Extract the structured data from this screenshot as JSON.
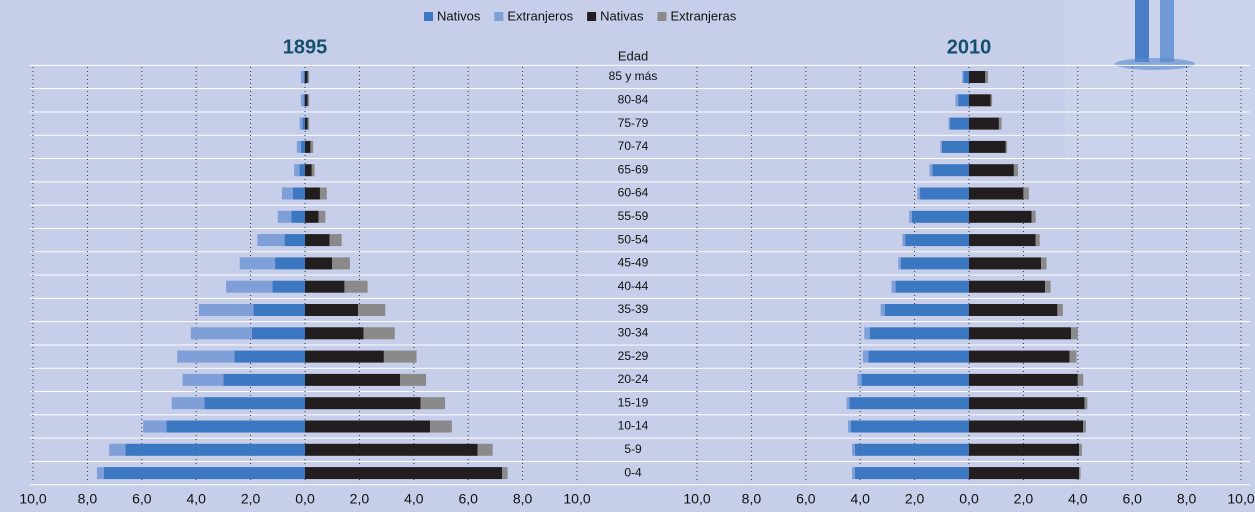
{
  "chart_data": {
    "type": "pyramid",
    "category_label": "Edad",
    "categories": [
      "85 y más",
      "80-84",
      "75-79",
      "70-74",
      "65-69",
      "60-64",
      "55-59",
      "50-54",
      "45-49",
      "40-44",
      "35-39",
      "30-34",
      "25-29",
      "20-24",
      "15-19",
      "10-14",
      "5-9",
      "0-4"
    ],
    "series": [
      {
        "name": "Nativos",
        "color": "#3b78c1",
        "side": "left"
      },
      {
        "name": "Extranjeros",
        "color": "#7f9fd9",
        "side": "left"
      },
      {
        "name": "Nativas",
        "color": "#221e1f",
        "side": "right"
      },
      {
        "name": "Extranjeras",
        "color": "#8a8a8a",
        "side": "right"
      }
    ],
    "xlim": [
      -10,
      10
    ],
    "xticks": [
      {
        "value": -10,
        "label": "10,0"
      },
      {
        "value": -8,
        "label": "8,0"
      },
      {
        "value": -6,
        "label": "6,0"
      },
      {
        "value": -4,
        "label": "4,0"
      },
      {
        "value": -2,
        "label": "2,0"
      },
      {
        "value": 0,
        "label": "0,0"
      },
      {
        "value": 2,
        "label": "2,0"
      },
      {
        "value": 4,
        "label": "4,0"
      },
      {
        "value": 6,
        "label": "6,0"
      },
      {
        "value": 8,
        "label": "8,0"
      },
      {
        "value": 10,
        "label": "10,0"
      }
    ],
    "panels": [
      {
        "title": "1895",
        "series": [
          {
            "values": [
              0.05,
              0.05,
              0.1,
              0.15,
              0.2,
              0.45,
              0.5,
              0.75,
              1.1,
              1.2,
              1.9,
              1.95,
              2.6,
              3.0,
              3.7,
              5.1,
              6.6,
              7.4
            ]
          },
          {
            "values": [
              0.1,
              0.1,
              0.1,
              0.15,
              0.2,
              0.4,
              0.5,
              1.0,
              1.3,
              1.7,
              2.0,
              2.25,
              2.1,
              1.5,
              1.2,
              0.85,
              0.6,
              0.25
            ]
          },
          {
            "values": [
              0.1,
              0.1,
              0.1,
              0.2,
              0.25,
              0.55,
              0.5,
              0.9,
              1.0,
              1.45,
              1.95,
              2.15,
              2.9,
              3.5,
              4.25,
              4.6,
              6.35,
              7.25
            ]
          },
          {
            "values": [
              0.05,
              0.05,
              0.05,
              0.1,
              0.1,
              0.25,
              0.25,
              0.45,
              0.65,
              0.85,
              1.0,
              1.15,
              1.2,
              0.95,
              0.9,
              0.8,
              0.55,
              0.2
            ]
          }
        ]
      },
      {
        "title": "2010",
        "series": [
          {
            "values": [
              0.2,
              0.4,
              0.7,
              1.0,
              1.35,
              1.8,
              2.1,
              2.35,
              2.5,
              2.7,
              3.1,
              3.65,
              3.7,
              3.95,
              4.4,
              4.35,
              4.2,
              4.2
            ]
          },
          {
            "values": [
              0.05,
              0.1,
              0.05,
              0.05,
              0.1,
              0.1,
              0.1,
              0.1,
              0.1,
              0.15,
              0.15,
              0.2,
              0.2,
              0.15,
              0.1,
              0.1,
              0.1,
              0.1
            ]
          },
          {
            "values": [
              0.6,
              0.8,
              1.1,
              1.35,
              1.65,
              2.0,
              2.3,
              2.45,
              2.65,
              2.8,
              3.25,
              3.75,
              3.7,
              4.0,
              4.25,
              4.2,
              4.05,
              4.05
            ]
          },
          {
            "values": [
              0.1,
              0.05,
              0.1,
              0.05,
              0.15,
              0.2,
              0.15,
              0.15,
              0.2,
              0.2,
              0.2,
              0.25,
              0.25,
              0.2,
              0.1,
              0.1,
              0.1,
              0.05
            ]
          }
        ]
      }
    ]
  }
}
